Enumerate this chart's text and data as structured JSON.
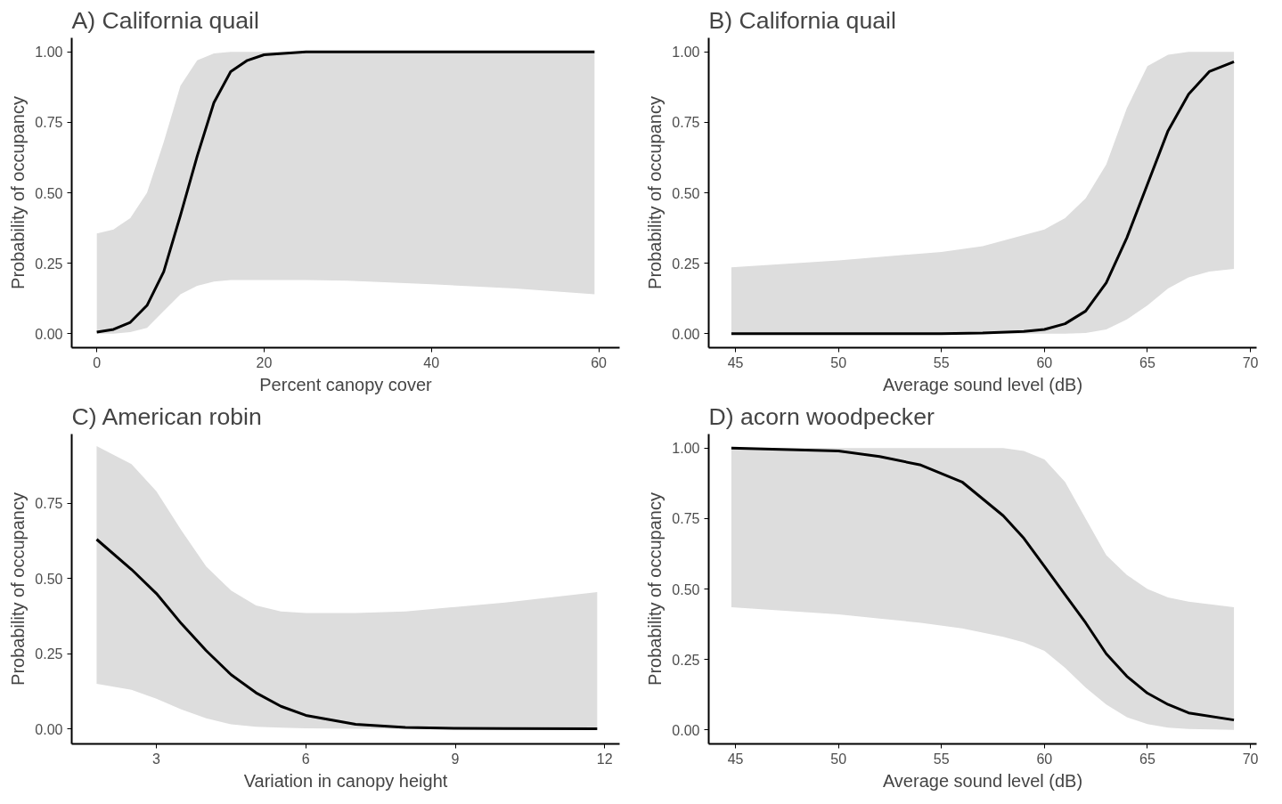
{
  "chart_data": [
    {
      "type": "line",
      "title": "A) California quail",
      "xlabel": "Percent canopy cover",
      "ylabel": "Probability of occupancy",
      "xlim": [
        -3,
        62.5
      ],
      "ylim": [
        -0.05,
        1.05
      ],
      "xticks": [
        0,
        20,
        40,
        60
      ],
      "yticks": [
        {
          "value": 0,
          "label": "0.00"
        },
        {
          "value": 0.25,
          "label": "0.25"
        },
        {
          "value": 0.5,
          "label": "0.50"
        },
        {
          "value": 0.75,
          "label": "0.75"
        },
        {
          "value": 1,
          "label": "1.00"
        }
      ],
      "grid": false,
      "series": [
        {
          "color": "#000000",
          "x": [
            0,
            2,
            4,
            6,
            8,
            10,
            12,
            14,
            16,
            18,
            20,
            25,
            30,
            40,
            50,
            59.5
          ],
          "values": [
            0.005,
            0.015,
            0.04,
            0.1,
            0.22,
            0.42,
            0.63,
            0.82,
            0.93,
            0.97,
            0.99,
            1,
            1,
            1,
            1,
            1
          ],
          "lower": [
            0,
            0,
            0.005,
            0.02,
            0.08,
            0.14,
            0.17,
            0.185,
            0.19,
            0.19,
            0.19,
            0.19,
            0.188,
            0.175,
            0.16,
            0.14
          ],
          "upper": [
            0.355,
            0.37,
            0.41,
            0.5,
            0.68,
            0.88,
            0.97,
            0.995,
            1,
            1,
            1,
            1,
            1,
            1,
            1,
            1
          ]
        }
      ]
    },
    {
      "type": "line",
      "title": "B) California quail",
      "xlabel": "Average sound level (dB)",
      "ylabel": "Probability of occupancy",
      "xlim": [
        43.7,
        70.3
      ],
      "ylim": [
        -0.05,
        1.05
      ],
      "xticks": [
        45,
        50,
        55,
        60,
        65,
        70
      ],
      "yticks": [
        {
          "value": 0,
          "label": "0.00"
        },
        {
          "value": 0.25,
          "label": "0.25"
        },
        {
          "value": 0.5,
          "label": "0.50"
        },
        {
          "value": 0.75,
          "label": "0.75"
        },
        {
          "value": 1,
          "label": "1.00"
        }
      ],
      "grid": false,
      "series": [
        {
          "color": "#000000",
          "x": [
            44.8,
            50,
            55,
            57,
            59,
            60,
            61,
            62,
            63,
            64,
            65,
            66,
            67,
            68,
            69.2
          ],
          "values": [
            0,
            0,
            0,
            0.002,
            0.008,
            0.015,
            0.035,
            0.08,
            0.18,
            0.34,
            0.53,
            0.72,
            0.85,
            0.93,
            0.965
          ],
          "lower": [
            0,
            0,
            0,
            0,
            0,
            0,
            0,
            0.002,
            0.015,
            0.05,
            0.1,
            0.16,
            0.2,
            0.22,
            0.23
          ],
          "upper": [
            0.235,
            0.26,
            0.29,
            0.31,
            0.35,
            0.37,
            0.41,
            0.48,
            0.6,
            0.8,
            0.95,
            0.99,
            1,
            1,
            1
          ]
        }
      ]
    },
    {
      "type": "line",
      "title": "C) American robin",
      "xlabel": "Variation in canopy height",
      "ylabel": "Probability of occupancy",
      "xlim": [
        1.3,
        12.3
      ],
      "ylim": [
        -0.05,
        0.98
      ],
      "xticks": [
        3,
        6,
        9,
        12
      ],
      "yticks": [
        {
          "value": 0,
          "label": "0.00"
        },
        {
          "value": 0.25,
          "label": "0.25"
        },
        {
          "value": 0.5,
          "label": "0.50"
        },
        {
          "value": 0.75,
          "label": "0.75"
        }
      ],
      "grid": false,
      "series": [
        {
          "color": "#000000",
          "x": [
            1.8,
            2.5,
            3,
            3.5,
            4,
            4.5,
            5,
            5.5,
            6,
            7,
            8,
            9,
            10,
            11.85
          ],
          "values": [
            0.63,
            0.53,
            0.45,
            0.35,
            0.26,
            0.18,
            0.12,
            0.075,
            0.045,
            0.015,
            0.005,
            0.002,
            0.001,
            0
          ],
          "lower": [
            0.15,
            0.13,
            0.1,
            0.065,
            0.035,
            0.015,
            0.007,
            0.004,
            0.002,
            0,
            0,
            0,
            0,
            0
          ],
          "upper": [
            0.94,
            0.88,
            0.79,
            0.66,
            0.54,
            0.46,
            0.41,
            0.39,
            0.385,
            0.385,
            0.39,
            0.405,
            0.42,
            0.455
          ]
        }
      ]
    },
    {
      "type": "line",
      "title": "D) acorn woodpecker",
      "xlabel": "Average sound level (dB)",
      "ylabel": "Probability of occupancy",
      "xlim": [
        43.7,
        70.3
      ],
      "ylim": [
        -0.05,
        1.05
      ],
      "xticks": [
        45,
        50,
        55,
        60,
        65,
        70
      ],
      "yticks": [
        {
          "value": 0,
          "label": "0.00"
        },
        {
          "value": 0.25,
          "label": "0.25"
        },
        {
          "value": 0.5,
          "label": "0.50"
        },
        {
          "value": 0.75,
          "label": "0.75"
        },
        {
          "value": 1,
          "label": "1.00"
        }
      ],
      "grid": false,
      "series": [
        {
          "color": "#000000",
          "x": [
            44.8,
            50,
            52,
            54,
            56,
            58,
            59,
            60,
            61,
            62,
            63,
            64,
            65,
            66,
            67,
            69.2
          ],
          "values": [
            1,
            0.99,
            0.97,
            0.94,
            0.88,
            0.76,
            0.68,
            0.58,
            0.48,
            0.38,
            0.27,
            0.19,
            0.13,
            0.09,
            0.06,
            0.035
          ],
          "lower": [
            0.435,
            0.41,
            0.395,
            0.38,
            0.36,
            0.33,
            0.31,
            0.28,
            0.22,
            0.15,
            0.09,
            0.045,
            0.02,
            0.008,
            0.003,
            0
          ],
          "upper": [
            1,
            1,
            1,
            1,
            1,
            1,
            0.99,
            0.96,
            0.88,
            0.75,
            0.62,
            0.55,
            0.5,
            0.47,
            0.455,
            0.435
          ]
        }
      ]
    }
  ]
}
